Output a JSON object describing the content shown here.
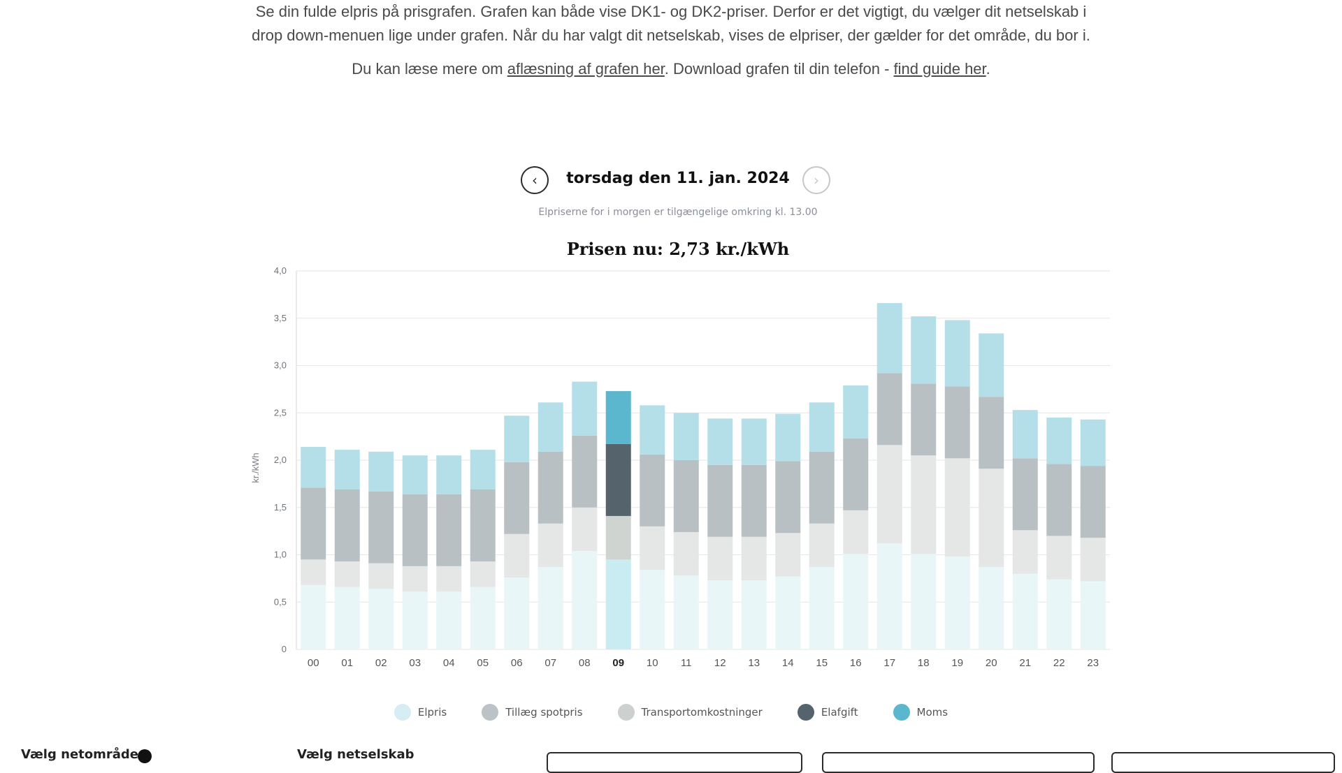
{
  "intro": {
    "line1": "Se din fulde elpris på prisgrafen. Grafen kan både vise DK1- og DK2-priser. Derfor er det vigtigt, du vælger dit netselskab i drop down-menuen lige under grafen. Når du har valgt dit netselskab, vises de elpriser, der gælder for det område, du bor i.",
    "line2_pre": "Du kan læse mere om ",
    "line2_link1": "aflæsning af grafen her",
    "line2_mid": ". Download grafen til din telefon - ",
    "line2_link2": "find guide her",
    "line2_post": "."
  },
  "datebar": {
    "date": "torsdag den 11. jan. 2024",
    "prev_icon": "chevron-left-icon",
    "next_icon": "chevron-right-icon"
  },
  "note": "Elpriserne for i morgen er tilgængelige omkring kl. 13.00",
  "price_now": "Prisen nu: 2,73 kr./kWh",
  "colors": {
    "elpris": "#d6eef3",
    "tillaeg": "#bcc3c6",
    "transport": "#e2e3e3",
    "elafgift": "#55646c",
    "moms": "#5bb7cd"
  },
  "chart_data": {
    "type": "bar",
    "stacked": true,
    "title": "Prisen nu: 2,73 kr./kWh",
    "ylabel": "kr./kWh",
    "xlabel": "",
    "ylim": [
      0,
      4.0
    ],
    "yticks": [
      "0",
      "0,5",
      "1,0",
      "1,5",
      "2,0",
      "2,5",
      "3,0",
      "3,5",
      "4,0"
    ],
    "categories": [
      "00",
      "01",
      "02",
      "03",
      "04",
      "05",
      "06",
      "07",
      "08",
      "09",
      "10",
      "11",
      "12",
      "13",
      "14",
      "15",
      "16",
      "17",
      "18",
      "19",
      "20",
      "21",
      "22",
      "23"
    ],
    "highlight_index": 9,
    "series": [
      {
        "name": "Elpris",
        "values": [
          0.68,
          0.66,
          0.64,
          0.61,
          0.61,
          0.66,
          0.76,
          0.87,
          1.04,
          0.95,
          0.84,
          0.78,
          0.73,
          0.73,
          0.77,
          0.87,
          1.01,
          1.12,
          1.01,
          0.98,
          0.87,
          0.8,
          0.74,
          0.72
        ]
      },
      {
        "name": "Tillæg spotpris",
        "values": [
          0.02,
          0.02,
          0.02,
          0.02,
          0.02,
          0.02,
          0.02,
          0.02,
          0.02,
          0.02,
          0.02,
          0.02,
          0.02,
          0.02,
          0.02,
          0.02,
          0.02,
          0.02,
          0.02,
          0.02,
          0.02,
          0.02,
          0.02,
          0.02
        ]
      },
      {
        "name": "Transportomkostninger",
        "values": [
          0.25,
          0.25,
          0.25,
          0.25,
          0.25,
          0.25,
          0.44,
          0.44,
          0.44,
          0.44,
          0.44,
          0.44,
          0.44,
          0.44,
          0.44,
          0.44,
          0.44,
          1.02,
          1.02,
          1.02,
          1.02,
          0.44,
          0.44,
          0.44
        ]
      },
      {
        "name": "Elafgift",
        "values": [
          0.76,
          0.76,
          0.76,
          0.76,
          0.76,
          0.76,
          0.76,
          0.76,
          0.76,
          0.76,
          0.76,
          0.76,
          0.76,
          0.76,
          0.76,
          0.76,
          0.76,
          0.76,
          0.76,
          0.76,
          0.76,
          0.76,
          0.76,
          0.76
        ]
      },
      {
        "name": "Moms",
        "values": [
          0.43,
          0.42,
          0.42,
          0.41,
          0.41,
          0.42,
          0.49,
          0.52,
          0.57,
          0.56,
          0.52,
          0.5,
          0.49,
          0.49,
          0.5,
          0.52,
          0.56,
          0.74,
          0.71,
          0.7,
          0.67,
          0.51,
          0.49,
          0.49
        ]
      }
    ]
  },
  "legend": [
    {
      "label": "Elpris",
      "color": "#d6eef3"
    },
    {
      "label": "Tillæg spotpris",
      "color": "#bcc3c6"
    },
    {
      "label": "Transportomkostninger",
      "color": "#ccd0ce"
    },
    {
      "label": "Elafgift",
      "color": "#55646c"
    },
    {
      "label": "Moms",
      "color": "#5bb7cd"
    }
  ],
  "bottom": {
    "label1": "Vælg netområde",
    "label2": "Vælg netselskab"
  }
}
